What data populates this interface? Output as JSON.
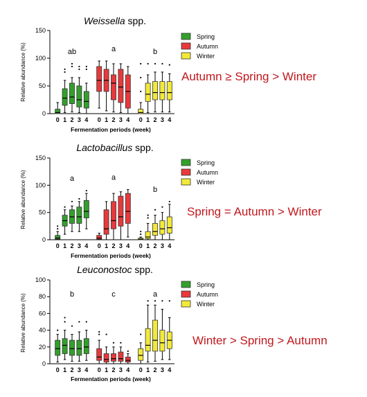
{
  "colors": {
    "spring": "#33a02c",
    "autumn": "#e8393c",
    "winter": "#f2e93a",
    "annotation": "#c0171d"
  },
  "chart_data": [
    {
      "type": "box",
      "title_italic": "Weissella",
      "title_rest": " spp.",
      "ylabel": "Relative abundance (%)",
      "xlabel": "Fermentation periods (week)",
      "categories": [
        "0",
        "1",
        "2",
        "3",
        "4"
      ],
      "ylim": [
        0,
        150
      ],
      "yticks": [
        "0",
        "50",
        "100",
        "150"
      ],
      "legend": [
        "Spring",
        "Autumn",
        "Winter"
      ],
      "letters": [
        "ab",
        "a",
        "b"
      ],
      "annotation": "Autumn ≥  Spring > Winter",
      "series": [
        {
          "name": "Spring",
          "color": "spring",
          "boxes": [
            {
              "min": 0,
              "q1": 0,
              "med": 2,
              "q3": 8,
              "max": 20,
              "out": []
            },
            {
              "min": 2,
              "q1": 15,
              "med": 28,
              "q3": 45,
              "max": 60,
              "out": [
                75,
                80
              ]
            },
            {
              "min": 3,
              "q1": 18,
              "med": 30,
              "q3": 55,
              "max": 65,
              "out": [
                85,
                90
              ]
            },
            {
              "min": 2,
              "q1": 12,
              "med": 25,
              "q3": 50,
              "max": 65,
              "out": [
                80,
                85
              ]
            },
            {
              "min": 0,
              "q1": 10,
              "med": 22,
              "q3": 40,
              "max": 55,
              "out": [
                80,
                85
              ]
            }
          ]
        },
        {
          "name": "Autumn",
          "color": "autumn",
          "boxes": [
            {
              "min": 10,
              "q1": 40,
              "med": 60,
              "q3": 85,
              "max": 95,
              "out": []
            },
            {
              "min": 5,
              "q1": 40,
              "med": 60,
              "q3": 80,
              "max": 95,
              "out": []
            },
            {
              "min": 3,
              "q1": 25,
              "med": 55,
              "q3": 70,
              "max": 90,
              "out": []
            },
            {
              "min": 2,
              "q1": 20,
              "med": 48,
              "q3": 80,
              "max": 90,
              "out": []
            },
            {
              "min": 0,
              "q1": 10,
              "med": 40,
              "q3": 70,
              "max": 85,
              "out": []
            }
          ]
        },
        {
          "name": "Winter",
          "color": "winter",
          "boxes": [
            {
              "min": 0,
              "q1": 0,
              "med": 2,
              "q3": 8,
              "max": 20,
              "out": [
                40,
                65,
                90
              ]
            },
            {
              "min": 2,
              "q1": 22,
              "med": 35,
              "q3": 55,
              "max": 70,
              "out": [
                90
              ]
            },
            {
              "min": 3,
              "q1": 25,
              "med": 38,
              "q3": 58,
              "max": 75,
              "out": [
                90
              ]
            },
            {
              "min": 3,
              "q1": 25,
              "med": 38,
              "q3": 58,
              "max": 75,
              "out": [
                90
              ]
            },
            {
              "min": 3,
              "q1": 25,
              "med": 38,
              "q3": 58,
              "max": 72,
              "out": [
                88
              ]
            }
          ]
        }
      ]
    },
    {
      "type": "box",
      "title_italic": "Lactobacillus",
      "title_rest": " spp.",
      "ylabel": "Relative abundance (%)",
      "xlabel": "Fermentation periods (week)",
      "categories": [
        "0",
        "1",
        "2",
        "3",
        "4"
      ],
      "ylim": [
        0,
        150
      ],
      "yticks": [
        "0",
        "50",
        "100",
        "150"
      ],
      "legend": [
        "Spring",
        "Autumn",
        "Winter"
      ],
      "letters": [
        "a",
        "a",
        "b"
      ],
      "annotation": "Spring = Autumn > Winter",
      "series": [
        {
          "name": "Spring",
          "color": "spring",
          "boxes": [
            {
              "min": 0,
              "q1": 1,
              "med": 3,
              "q3": 8,
              "max": 15,
              "out": [
                20,
                25
              ]
            },
            {
              "min": 10,
              "q1": 25,
              "med": 35,
              "q3": 45,
              "max": 55,
              "out": [
                60
              ]
            },
            {
              "min": 15,
              "q1": 30,
              "med": 42,
              "q3": 55,
              "max": 62,
              "out": [
                70
              ]
            },
            {
              "min": 15,
              "q1": 30,
              "med": 42,
              "q3": 60,
              "max": 70,
              "out": [
                75
              ]
            },
            {
              "min": 20,
              "q1": 40,
              "med": 52,
              "q3": 72,
              "max": 85,
              "out": [
                90
              ]
            }
          ]
        },
        {
          "name": "Autumn",
          "color": "autumn",
          "boxes": [
            {
              "min": 0,
              "q1": 1,
              "med": 3,
              "q3": 8,
              "max": 12,
              "out": []
            },
            {
              "min": 0,
              "q1": 10,
              "med": 20,
              "q3": 55,
              "max": 70,
              "out": []
            },
            {
              "min": 0,
              "q1": 20,
              "med": 35,
              "q3": 70,
              "max": 85,
              "out": []
            },
            {
              "min": 0,
              "q1": 25,
              "med": 42,
              "q3": 80,
              "max": 88,
              "out": []
            },
            {
              "min": 5,
              "q1": 30,
              "med": 52,
              "q3": 85,
              "max": 92,
              "out": []
            }
          ]
        },
        {
          "name": "Winter",
          "color": "winter",
          "boxes": [
            {
              "min": 0,
              "q1": 0,
              "med": 1,
              "q3": 3,
              "max": 5,
              "out": [
                10,
                15
              ]
            },
            {
              "min": 0,
              "q1": 2,
              "med": 5,
              "q3": 15,
              "max": 30,
              "out": [
                40,
                45
              ]
            },
            {
              "min": 0,
              "q1": 8,
              "med": 15,
              "q3": 30,
              "max": 45,
              "out": [
                55
              ]
            },
            {
              "min": 0,
              "q1": 10,
              "med": 20,
              "q3": 35,
              "max": 50,
              "out": [
                60
              ]
            },
            {
              "min": 0,
              "q1": 12,
              "med": 22,
              "q3": 42,
              "max": 65,
              "out": [
                70
              ]
            }
          ]
        }
      ]
    },
    {
      "type": "box",
      "title_italic": "Leuconostoc",
      "title_rest": " spp.",
      "ylabel": "Relative abundance (%)",
      "xlabel": "Fermentation periods (week)",
      "categories": [
        "0",
        "1",
        "2",
        "3",
        "4"
      ],
      "ylim": [
        0,
        100
      ],
      "yticks": [
        "0",
        "20",
        "40",
        "60",
        "80",
        "100"
      ],
      "legend": [
        "Spring",
        "Autumn",
        "Winter"
      ],
      "letters": [
        "b",
        "c",
        "a"
      ],
      "annotation": "Winter > Spring > Autumn",
      "series": [
        {
          "name": "Spring",
          "color": "spring",
          "boxes": [
            {
              "min": 2,
              "q1": 10,
              "med": 18,
              "q3": 28,
              "max": 35,
              "out": [
                40
              ]
            },
            {
              "min": 5,
              "q1": 12,
              "med": 22,
              "q3": 30,
              "max": 40,
              "out": [
                50,
                55
              ]
            },
            {
              "min": 3,
              "q1": 10,
              "med": 18,
              "q3": 28,
              "max": 35,
              "out": [
                45
              ]
            },
            {
              "min": 3,
              "q1": 10,
              "med": 18,
              "q3": 28,
              "max": 38,
              "out": [
                50
              ]
            },
            {
              "min": 4,
              "q1": 12,
              "med": 20,
              "q3": 30,
              "max": 40,
              "out": [
                50
              ]
            }
          ]
        },
        {
          "name": "Autumn",
          "color": "autumn",
          "boxes": [
            {
              "min": 0,
              "q1": 4,
              "med": 8,
              "q3": 18,
              "max": 28,
              "out": [
                35,
                38
              ]
            },
            {
              "min": 0,
              "q1": 2,
              "med": 5,
              "q3": 12,
              "max": 20,
              "out": [
                35
              ]
            },
            {
              "min": 0,
              "q1": 3,
              "med": 6,
              "q3": 12,
              "max": 20,
              "out": [
                25
              ]
            },
            {
              "min": 0,
              "q1": 3,
              "med": 6,
              "q3": 14,
              "max": 20,
              "out": [
                25
              ]
            },
            {
              "min": 0,
              "q1": 2,
              "med": 4,
              "q3": 8,
              "max": 12,
              "out": [
                15
              ]
            }
          ]
        },
        {
          "name": "Winter",
          "color": "winter",
          "boxes": [
            {
              "min": 0,
              "q1": 4,
              "med": 10,
              "q3": 18,
              "max": 25,
              "out": [
                35
              ]
            },
            {
              "min": 2,
              "q1": 15,
              "med": 22,
              "q3": 42,
              "max": 70,
              "out": [
                75
              ]
            },
            {
              "min": 3,
              "q1": 15,
              "med": 28,
              "q3": 52,
              "max": 70,
              "out": [
                75
              ]
            },
            {
              "min": 5,
              "q1": 15,
              "med": 25,
              "q3": 40,
              "max": 65,
              "out": [
                75
              ]
            },
            {
              "min": 5,
              "q1": 18,
              "med": 28,
              "q3": 38,
              "max": 55,
              "out": [
                75
              ]
            }
          ]
        }
      ]
    }
  ]
}
